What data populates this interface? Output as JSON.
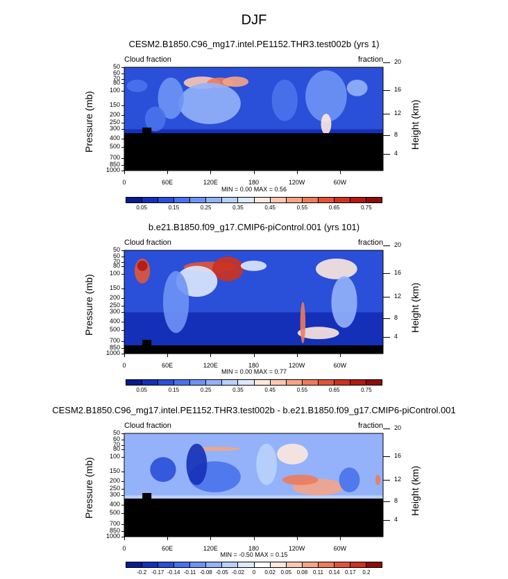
{
  "figure": {
    "title": "DJF"
  },
  "chart_data": [
    {
      "type": "heatmap",
      "title": "CESM2.B1850.C96_mg17.intel.PE1152.THR3.test002b (yrs 1)",
      "left_label": "Cloud fraction",
      "right_label": "fraction",
      "ylabel": "Pressure (mb)",
      "ylabel_right": "Height (km)",
      "x_ticks": [
        "0",
        "60E",
        "120E",
        "180",
        "120W",
        "60W"
      ],
      "y_ticks": [
        1000,
        850,
        700,
        500,
        400,
        300,
        250,
        200,
        150,
        100,
        80,
        70,
        60,
        50
      ],
      "y_ticks_right": [
        4,
        8,
        12,
        16,
        20
      ],
      "min_max": "MIN =  0.00  MAX =  0.56",
      "min": 0.0,
      "max": 0.56,
      "colorbar": {
        "levels": [
          "0.05",
          "0.15",
          "0.25",
          "0.35",
          "0.45",
          "0.55",
          "0.65",
          "0.75"
        ],
        "colors": [
          "#0a1a8f",
          "#1530b8",
          "#2a4fd8",
          "#4a72ec",
          "#6e93f5",
          "#93b2fa",
          "#b9d0fc",
          "#dde9fe",
          "#fde8de",
          "#f9c8b3",
          "#f4a486",
          "#ec7c5c",
          "#e0553a",
          "#cc3220",
          "#b01a12",
          "#8e0c0a"
        ]
      }
    },
    {
      "type": "heatmap",
      "title": "b.e21.B1850.f09_g17.CMIP6-piControl.001 (yrs 101)",
      "left_label": "Cloud fraction",
      "right_label": "fraction",
      "ylabel": "Pressure (mb)",
      "ylabel_right": "Height (km)",
      "x_ticks": [
        "0",
        "60E",
        "120E",
        "180",
        "120W",
        "60W"
      ],
      "y_ticks": [
        1000,
        850,
        700,
        500,
        400,
        300,
        250,
        200,
        150,
        100,
        80,
        70,
        60,
        50
      ],
      "y_ticks_right": [
        4,
        8,
        12,
        16,
        20
      ],
      "min_max": "MIN =  0.00  MAX =  0.77",
      "min": 0.0,
      "max": 0.77,
      "colorbar": {
        "levels": [
          "0.05",
          "0.15",
          "0.25",
          "0.35",
          "0.45",
          "0.55",
          "0.65",
          "0.75"
        ],
        "colors": [
          "#0a1a8f",
          "#1530b8",
          "#2a4fd8",
          "#4a72ec",
          "#6e93f5",
          "#93b2fa",
          "#b9d0fc",
          "#dde9fe",
          "#fde8de",
          "#f9c8b3",
          "#f4a486",
          "#ec7c5c",
          "#e0553a",
          "#cc3220",
          "#b01a12",
          "#8e0c0a"
        ]
      }
    },
    {
      "type": "heatmap",
      "title": "CESM2.B1850.C96_mg17.intel.PE1152.THR3.test002b - b.e21.B1850.f09_g17.CMIP6-piControl.001",
      "left_label": "Cloud fraction",
      "right_label": "fraction",
      "ylabel": "Pressure (mb)",
      "ylabel_right": "Height (km)",
      "x_ticks": [
        "0",
        "60E",
        "120E",
        "180",
        "120W",
        "60W"
      ],
      "y_ticks": [
        1000,
        850,
        700,
        500,
        400,
        300,
        250,
        200,
        150,
        100,
        80,
        70,
        60,
        50
      ],
      "y_ticks_right": [
        4,
        8,
        12,
        16,
        20
      ],
      "min_max": "MIN = -0.50  MAX =  0.15",
      "min": -0.5,
      "max": 0.15,
      "colorbar": {
        "levels": [
          "-0.2",
          "-0.17",
          "-0.14",
          "-0.11",
          "-0.08",
          "-0.05",
          "-0.02",
          "0",
          "0.02",
          "0.05",
          "0.08",
          "0.11",
          "0.14",
          "0.17",
          "0.2"
        ],
        "colors": [
          "#0a1a8f",
          "#1530b8",
          "#2a4fd8",
          "#4a72ec",
          "#6e93f5",
          "#93b2fa",
          "#b9d0fc",
          "#dde9fe",
          "#ffffff",
          "#fde8de",
          "#f9c8b3",
          "#f4a486",
          "#ec7c5c",
          "#e0553a",
          "#cc3220",
          "#8e0c0a"
        ]
      }
    }
  ]
}
